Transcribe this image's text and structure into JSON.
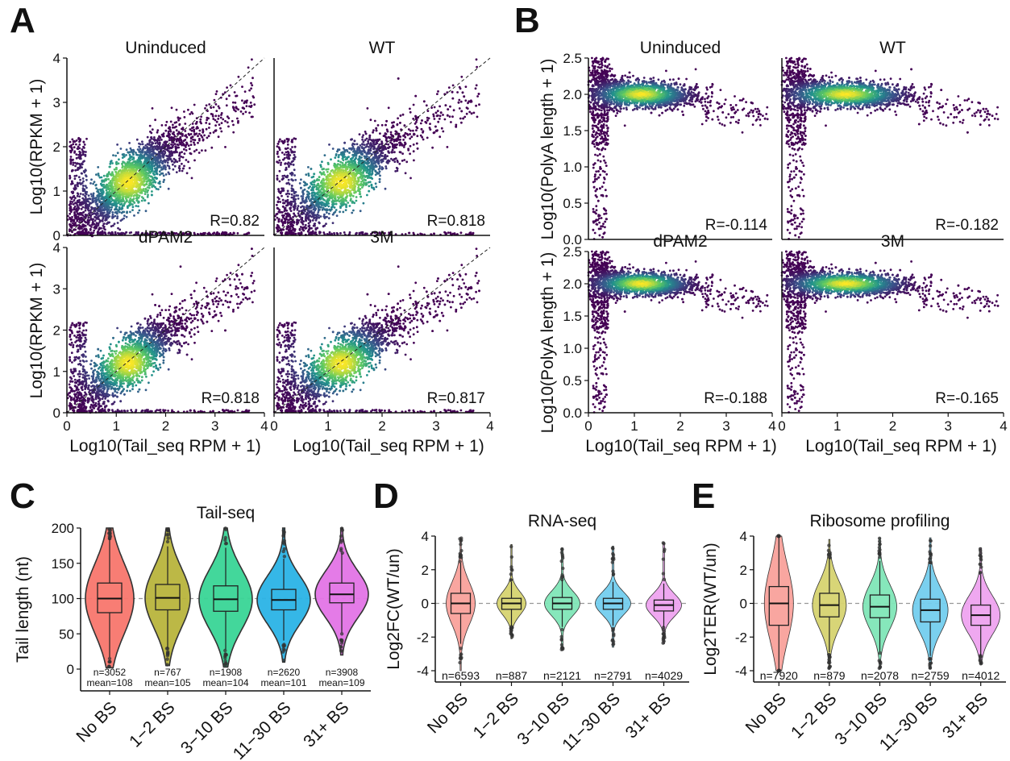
{
  "panel_letters": [
    "A",
    "B",
    "C",
    "D",
    "E"
  ],
  "colors": {
    "density_low": "#440154",
    "density_mid": "#21918c",
    "density_high": "#fde725",
    "violin_fills": [
      "#f8766d",
      "#b8b43c",
      "#39d596",
      "#2ab3e6",
      "#e374e6"
    ],
    "violin_fills_light": [
      "#f9a19b",
      "#d6d370",
      "#7fe6b7",
      "#73cdee",
      "#eea3ef"
    ]
  },
  "chart_data": [
    {
      "id": "A",
      "type": "scatter",
      "xlabel": "Log10(Tail_seq RPM + 1)",
      "ylabel": "Log10(RPKM + 1)",
      "xlim": [
        0,
        4
      ],
      "ylim": [
        0,
        4
      ],
      "x_ticks": [
        "0",
        "1",
        "2",
        "3",
        "4"
      ],
      "y_ticks": [
        "0",
        "1",
        "2",
        "3",
        "4"
      ],
      "diagonal": true,
      "grid": false,
      "facets": [
        {
          "title": "Uninduced",
          "r_label": "R=0.82"
        },
        {
          "title": "WT",
          "r_label": "R=0.818"
        },
        {
          "title": "dPAM2",
          "r_label": "R=0.818"
        },
        {
          "title": "3M",
          "r_label": "R=0.817"
        }
      ]
    },
    {
      "id": "B",
      "type": "scatter",
      "xlabel": "Log10(Tail_seq RPM + 1)",
      "ylabel": "Log10(PolyA length + 1)",
      "xlim": [
        0,
        4
      ],
      "ylim": [
        0,
        2.5
      ],
      "x_ticks": [
        "0",
        "1",
        "2",
        "3",
        "4"
      ],
      "y_ticks": [
        "0.0",
        "0.5",
        "1.0",
        "1.5",
        "2.0",
        "2.5"
      ],
      "grid": false,
      "facets": [
        {
          "title": "Uninduced",
          "r_label": "R=-0.114"
        },
        {
          "title": "WT",
          "r_label": "R=-0.182"
        },
        {
          "title": "dPAM2",
          "r_label": "R=-0.188"
        },
        {
          "title": "3M",
          "r_label": "R=-0.165"
        }
      ]
    },
    {
      "id": "C",
      "type": "violin",
      "title": "Tail-seq",
      "ylabel": "Tail length (nt)",
      "ylim": [
        0,
        200
      ],
      "y_ticks": [
        "0",
        "50",
        "100",
        "150",
        "200"
      ],
      "ref_line": 100,
      "categories": [
        "No BS",
        "1−2 BS",
        "3−10 BS",
        "11−30 BS",
        "31+ BS"
      ],
      "n_labels": [
        "n=3052",
        "n=767",
        "n=1908",
        "n=2620",
        "n=3908"
      ],
      "mean_labels": [
        "mean=108",
        "mean=105",
        "mean=104",
        "mean=101",
        "mean=109"
      ],
      "medians": [
        100,
        101,
        99,
        98,
        106
      ],
      "q1": [
        80,
        84,
        82,
        84,
        94
      ],
      "q3": [
        122,
        120,
        118,
        113,
        122
      ]
    },
    {
      "id": "D",
      "type": "violin",
      "title": "RNA-seq",
      "ylabel": "Log2FC(WT/un)",
      "ylim": [
        -4,
        4
      ],
      "y_ticks": [
        "-4",
        "-2",
        "0",
        "2",
        "4"
      ],
      "ref_line": 0,
      "categories": [
        "No BS",
        "1−2 BS",
        "3−10 BS",
        "11−30 BS",
        "31+ BS"
      ],
      "n_labels": [
        "n=6593",
        "n=887",
        "n=2121",
        "n=2791",
        "n=4029"
      ],
      "medians": [
        0,
        0,
        0,
        0,
        -0.1
      ],
      "q1": [
        -0.6,
        -0.35,
        -0.35,
        -0.35,
        -0.45
      ],
      "q3": [
        0.6,
        0.3,
        0.35,
        0.3,
        0.2
      ]
    },
    {
      "id": "E",
      "type": "violin",
      "title": "Ribosome profiling",
      "ylabel": "Log2TER(WT/un)",
      "ylim": [
        -4,
        4
      ],
      "y_ticks": [
        "-4",
        "-2",
        "0",
        "2",
        "4"
      ],
      "ref_line": 0,
      "categories": [
        "No BS",
        "1−2 BS",
        "3−10 BS",
        "11−30 BS",
        "31+ BS"
      ],
      "n_labels": [
        "n=7920",
        "n=879",
        "n=2078",
        "n=2759",
        "n=4012"
      ],
      "medians": [
        0,
        -0.1,
        -0.2,
        -0.4,
        -0.7
      ],
      "q1": [
        -1.3,
        -0.8,
        -0.85,
        -1.1,
        -1.3
      ],
      "q3": [
        1.0,
        0.6,
        0.5,
        0.25,
        -0.1
      ]
    }
  ]
}
